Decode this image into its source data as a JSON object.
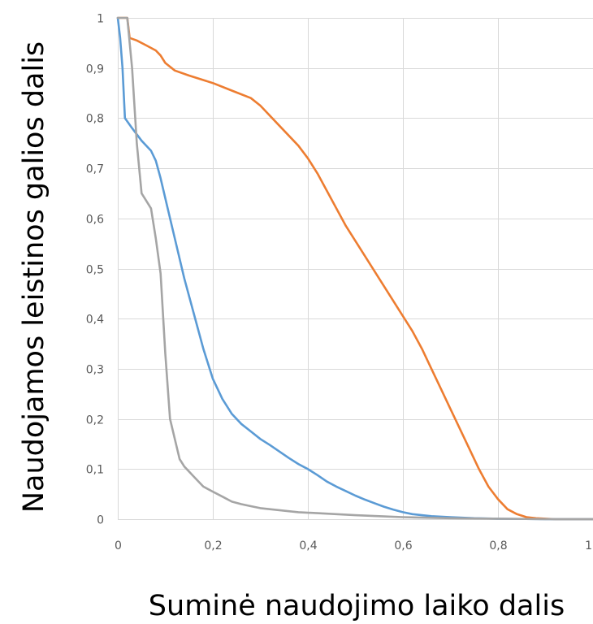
{
  "chart_data": {
    "type": "line",
    "title": "",
    "xlabel": "Suminė naudojimo laiko dalis",
    "ylabel": "Naudojamos leistinos galios dalis",
    "xlim": [
      0,
      1
    ],
    "ylim": [
      0,
      1
    ],
    "grid": true,
    "legend": "none",
    "x_ticks": [
      {
        "value": 0,
        "label": "0"
      },
      {
        "value": 0.2,
        "label": "0,2"
      },
      {
        "value": 0.4,
        "label": "0,4"
      },
      {
        "value": 0.6,
        "label": "0,6"
      },
      {
        "value": 0.8,
        "label": "0,8"
      },
      {
        "value": 1,
        "label": "1"
      }
    ],
    "y_ticks": [
      {
        "value": 0,
        "label": "0"
      },
      {
        "value": 0.1,
        "label": "0,1"
      },
      {
        "value": 0.2,
        "label": "0,2"
      },
      {
        "value": 0.3,
        "label": "0,3"
      },
      {
        "value": 0.4,
        "label": "0,4"
      },
      {
        "value": 0.5,
        "label": "0,5"
      },
      {
        "value": 0.6,
        "label": "0,6"
      },
      {
        "value": 0.7,
        "label": "0,7"
      },
      {
        "value": 0.8,
        "label": "0,8"
      },
      {
        "value": 0.9,
        "label": "0,9"
      },
      {
        "value": 1,
        "label": "1"
      }
    ],
    "series": [
      {
        "color": "#ed7d31",
        "x": [
          0,
          0.02,
          0.025,
          0.04,
          0.06,
          0.08,
          0.09,
          0.1,
          0.12,
          0.15,
          0.2,
          0.24,
          0.28,
          0.3,
          0.34,
          0.38,
          0.4,
          0.42,
          0.44,
          0.46,
          0.48,
          0.5,
          0.52,
          0.54,
          0.56,
          0.58,
          0.6,
          0.62,
          0.64,
          0.66,
          0.68,
          0.7,
          0.72,
          0.74,
          0.76,
          0.78,
          0.8,
          0.82,
          0.84,
          0.86,
          0.88,
          0.9,
          0.92,
          0.95,
          1.0
        ],
        "y": [
          1.0,
          1.0,
          0.96,
          0.955,
          0.945,
          0.935,
          0.925,
          0.91,
          0.895,
          0.885,
          0.87,
          0.855,
          0.84,
          0.825,
          0.785,
          0.745,
          0.72,
          0.69,
          0.655,
          0.62,
          0.585,
          0.555,
          0.525,
          0.495,
          0.465,
          0.435,
          0.405,
          0.375,
          0.34,
          0.3,
          0.26,
          0.22,
          0.18,
          0.14,
          0.1,
          0.065,
          0.04,
          0.02,
          0.01,
          0.004,
          0.002,
          0.001,
          0.0,
          0.0,
          0.0
        ]
      },
      {
        "color": "#5b9bd5",
        "x": [
          0,
          0.005,
          0.01,
          0.015,
          0.03,
          0.05,
          0.07,
          0.08,
          0.09,
          0.1,
          0.12,
          0.14,
          0.16,
          0.18,
          0.2,
          0.22,
          0.24,
          0.26,
          0.28,
          0.3,
          0.32,
          0.34,
          0.36,
          0.38,
          0.4,
          0.42,
          0.44,
          0.46,
          0.48,
          0.5,
          0.52,
          0.54,
          0.56,
          0.58,
          0.6,
          0.62,
          0.64,
          0.66,
          0.68,
          0.7,
          0.75,
          0.8,
          0.9,
          1.0
        ],
        "y": [
          1.0,
          0.96,
          0.9,
          0.8,
          0.78,
          0.755,
          0.735,
          0.715,
          0.68,
          0.64,
          0.56,
          0.48,
          0.41,
          0.34,
          0.28,
          0.24,
          0.21,
          0.19,
          0.175,
          0.16,
          0.148,
          0.135,
          0.122,
          0.11,
          0.1,
          0.088,
          0.075,
          0.065,
          0.056,
          0.047,
          0.039,
          0.032,
          0.025,
          0.019,
          0.014,
          0.01,
          0.008,
          0.006,
          0.005,
          0.004,
          0.002,
          0.001,
          0.0,
          0.0
        ]
      },
      {
        "color": "#a5a5a5",
        "x": [
          0,
          0.01,
          0.015,
          0.02,
          0.03,
          0.04,
          0.05,
          0.06,
          0.07,
          0.08,
          0.09,
          0.1,
          0.11,
          0.12,
          0.13,
          0.14,
          0.16,
          0.18,
          0.2,
          0.22,
          0.24,
          0.26,
          0.28,
          0.3,
          0.34,
          0.38,
          0.42,
          0.46,
          0.5,
          0.55,
          0.6,
          0.7,
          0.8,
          0.9,
          1.0
        ],
        "y": [
          1.0,
          1.0,
          1.0,
          1.0,
          0.9,
          0.75,
          0.65,
          0.635,
          0.62,
          0.56,
          0.49,
          0.33,
          0.2,
          0.16,
          0.12,
          0.105,
          0.085,
          0.065,
          0.055,
          0.045,
          0.035,
          0.03,
          0.026,
          0.022,
          0.018,
          0.014,
          0.012,
          0.01,
          0.008,
          0.006,
          0.004,
          0.002,
          0.001,
          0.0,
          0.0
        ]
      }
    ]
  }
}
